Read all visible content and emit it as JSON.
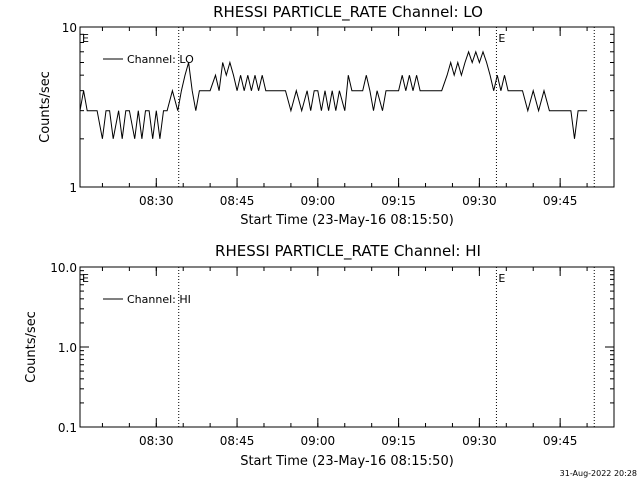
{
  "footer": {
    "timestamp": "31-Aug-2022 20:28"
  },
  "chart_data": [
    {
      "type": "line",
      "title": "RHESSI PARTICLE_RATE Channel: LO",
      "xlabel": "Start Time (23-May-16 08:15:50)",
      "ylabel": "Counts/sec",
      "yscale": "log",
      "xlim": [
        "08:15:50",
        "09:55:00"
      ],
      "ylim": [
        1,
        10
      ],
      "x_ticks": [
        "08:30",
        "08:45",
        "09:00",
        "09:15",
        "09:30",
        "09:45"
      ],
      "y_ticks": [
        "1",
        "10"
      ],
      "legend": {
        "position": "top-left",
        "label": "Channel: LO"
      },
      "event_markers": [
        {
          "time": "08:15:50",
          "label": "E",
          "line": false
        },
        {
          "time": "08:34:10",
          "label": "",
          "line": true
        },
        {
          "time": "09:33:10",
          "label": "E",
          "line": true
        },
        {
          "time": "09:51:20",
          "label": "",
          "line": true
        }
      ],
      "series": [
        {
          "name": "Channel: LO",
          "x": [
            "08:15:50",
            "08:16:30",
            "08:17:10",
            "08:18:00",
            "08:19:00",
            "08:20:00",
            "08:20:40",
            "08:21:20",
            "08:22:00",
            "08:23:00",
            "08:23:40",
            "08:24:20",
            "08:25:00",
            "08:26:00",
            "08:26:40",
            "08:27:20",
            "08:28:00",
            "08:28:40",
            "08:29:20",
            "08:30:00",
            "08:30:40",
            "08:31:20",
            "08:32:00",
            "08:33:00",
            "08:34:00",
            "08:34:40",
            "08:35:20",
            "08:36:00",
            "08:36:40",
            "08:37:20",
            "08:38:00",
            "08:39:00",
            "08:40:00",
            "08:41:00",
            "08:41:40",
            "08:42:20",
            "08:43:00",
            "08:43:40",
            "08:44:20",
            "08:45:00",
            "08:45:40",
            "08:46:20",
            "08:47:00",
            "08:47:40",
            "08:48:20",
            "08:49:00",
            "08:49:40",
            "08:50:20",
            "08:51:00",
            "08:52:00",
            "08:53:00",
            "08:54:00",
            "08:55:00",
            "08:56:00",
            "08:57:00",
            "08:58:00",
            "08:58:40",
            "08:59:20",
            "09:00:00",
            "09:00:40",
            "09:01:20",
            "09:02:00",
            "09:02:40",
            "09:03:20",
            "09:04:00",
            "09:05:00",
            "09:05:40",
            "09:06:20",
            "09:07:00",
            "09:07:40",
            "09:08:20",
            "09:09:00",
            "09:09:40",
            "09:10:20",
            "09:11:00",
            "09:12:00",
            "09:12:40",
            "09:13:20",
            "09:14:00",
            "09:15:00",
            "09:15:40",
            "09:16:20",
            "09:17:00",
            "09:17:40",
            "09:18:20",
            "09:19:00",
            "09:20:00",
            "09:21:00",
            "09:22:00",
            "09:23:00",
            "09:24:00",
            "09:24:40",
            "09:25:20",
            "09:26:00",
            "09:26:40",
            "09:27:20",
            "09:28:00",
            "09:28:40",
            "09:29:20",
            "09:30:00",
            "09:30:40",
            "09:31:20",
            "09:32:00",
            "09:32:40",
            "09:33:20",
            "09:34:00",
            "09:34:40",
            "09:35:20",
            "09:36:00",
            "09:37:00",
            "09:38:00",
            "09:39:00",
            "09:40:00",
            "09:41:00",
            "09:42:00",
            "09:43:00",
            "09:44:00",
            "09:45:00",
            "09:46:00",
            "09:47:00",
            "09:47:40",
            "09:48:20",
            "09:49:00",
            "09:50:00"
          ],
          "values": [
            3,
            4,
            3,
            3,
            3,
            2,
            3,
            3,
            2,
            3,
            2,
            3,
            3,
            2,
            3,
            2,
            3,
            3,
            2,
            3,
            2,
            3,
            3,
            4,
            3,
            4,
            5,
            6,
            4,
            3,
            4,
            4,
            4,
            5,
            4,
            6,
            5,
            6,
            5,
            4,
            5,
            4,
            5,
            4,
            5,
            4,
            5,
            4,
            4,
            4,
            4,
            4,
            3,
            4,
            3,
            4,
            3,
            4,
            4,
            3,
            4,
            3,
            4,
            3,
            4,
            3,
            5,
            4,
            4,
            4,
            4,
            5,
            4,
            3,
            4,
            3,
            4,
            4,
            4,
            4,
            5,
            4,
            5,
            4,
            5,
            4,
            4,
            4,
            4,
            4,
            5,
            6,
            5,
            6,
            5,
            6,
            7,
            6,
            7,
            6,
            7,
            6,
            5,
            4,
            5,
            4,
            5,
            4,
            4,
            4,
            4,
            3,
            4,
            3,
            4,
            3,
            3,
            3,
            3,
            3,
            2,
            3,
            3,
            3
          ]
        }
      ]
    },
    {
      "type": "line",
      "title": "RHESSI PARTICLE_RATE Channel: HI",
      "xlabel": "Start Time (23-May-16 08:15:50)",
      "ylabel": "Counts/sec",
      "yscale": "log",
      "xlim": [
        "08:15:50",
        "09:55:00"
      ],
      "ylim": [
        0.1,
        10
      ],
      "x_ticks": [
        "08:30",
        "08:45",
        "09:00",
        "09:15",
        "09:30",
        "09:45"
      ],
      "y_ticks": [
        "0.1",
        "1.0",
        "10.0"
      ],
      "legend": {
        "position": "top-left",
        "label": "Channel: HI"
      },
      "event_markers": [
        {
          "time": "08:15:50",
          "label": "E",
          "line": false
        },
        {
          "time": "08:34:10",
          "label": "",
          "line": true
        },
        {
          "time": "09:33:10",
          "label": "E",
          "line": true
        },
        {
          "time": "09:51:20",
          "label": "",
          "line": true
        }
      ],
      "series": [
        {
          "name": "Channel: HI",
          "x": [],
          "values": []
        }
      ]
    }
  ]
}
